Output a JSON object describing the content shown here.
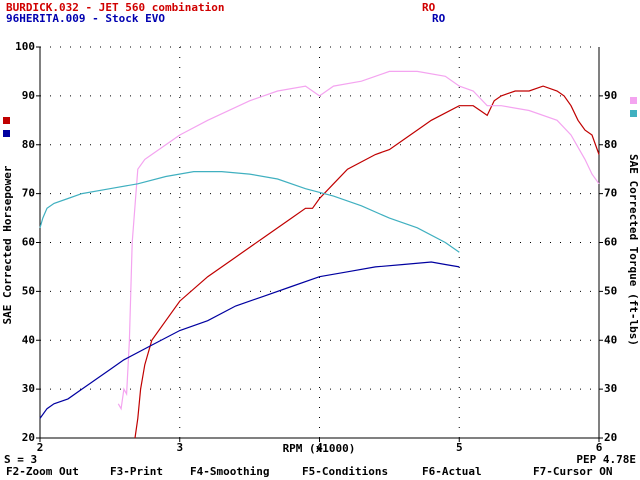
{
  "chart_data": {
    "type": "line",
    "runs": [
      {
        "name": "BURDICK.032 - JET 560 combination",
        "code": "RO",
        "color": "#d00000"
      },
      {
        "name": "96HERITA.009 - Stock EVO",
        "code": "RO",
        "color": "#0000b0"
      }
    ],
    "xlabel": "RPM (x1000)",
    "ylabel": "SAE Corrected Horsepower",
    "y2label": "SAE Corrected Torque (ft-lbs)",
    "xlim": [
      2,
      6
    ],
    "xticks": [
      2,
      3,
      4,
      5,
      6
    ],
    "ylim": [
      20,
      100
    ],
    "yticks": [
      20,
      30,
      40,
      50,
      60,
      70,
      80,
      90,
      100
    ],
    "y2lim": [
      20,
      100
    ],
    "y2ticks": [
      20,
      30,
      40,
      50,
      60,
      70,
      80,
      90
    ],
    "grid": true,
    "series": [
      {
        "color": "#c00000",
        "axis": "y",
        "x": [
          2.68,
          2.7,
          2.72,
          2.75,
          2.8,
          2.9,
          3.0,
          3.2,
          3.4,
          3.6,
          3.8,
          3.9,
          3.95,
          4.0,
          4.1,
          4.2,
          4.4,
          4.5,
          4.6,
          4.8,
          5.0,
          5.1,
          5.15,
          5.2,
          5.25,
          5.3,
          5.4,
          5.5,
          5.6,
          5.7,
          5.75,
          5.8,
          5.85,
          5.9,
          5.95,
          6.0
        ],
        "values": [
          20,
          24,
          30,
          35,
          40,
          44,
          48,
          53,
          57,
          61,
          65,
          67,
          67,
          69,
          72,
          75,
          78,
          79,
          81,
          85,
          88,
          88,
          87,
          86,
          89,
          90,
          91,
          91,
          92,
          91,
          90,
          88,
          85,
          83,
          82,
          78
        ]
      },
      {
        "color": "#f4a4f0",
        "axis": "y2",
        "x": [
          2.56,
          2.58,
          2.6,
          2.62,
          2.64,
          2.66,
          2.7,
          2.75,
          2.8,
          3.0,
          3.2,
          3.5,
          3.7,
          3.9,
          4.0,
          4.1,
          4.3,
          4.5,
          4.7,
          4.9,
          5.0,
          5.1,
          5.2,
          5.3,
          5.5,
          5.7,
          5.8,
          5.9,
          5.95,
          6.0
        ],
        "values": [
          27,
          26,
          30,
          29,
          40,
          60,
          75,
          77,
          78,
          82,
          85,
          89,
          91,
          92,
          90,
          92,
          93,
          95,
          95,
          94,
          92,
          91,
          88,
          88,
          87,
          85,
          82,
          77,
          74,
          72
        ]
      },
      {
        "color": "#0000a0",
        "axis": "y",
        "x": [
          2.0,
          2.05,
          2.1,
          2.2,
          2.3,
          2.4,
          2.5,
          2.6,
          2.8,
          3.0,
          3.2,
          3.4,
          3.6,
          3.8,
          4.0,
          4.2,
          4.4,
          4.6,
          4.8,
          4.9,
          5.0
        ],
        "values": [
          24,
          26,
          27,
          28,
          30,
          32,
          34,
          36,
          39,
          42,
          44,
          47,
          49,
          51,
          53,
          54,
          55,
          55.5,
          56,
          55.5,
          55
        ]
      },
      {
        "color": "#40b0c0",
        "axis": "y2",
        "x": [
          2.0,
          2.02,
          2.05,
          2.1,
          2.2,
          2.3,
          2.5,
          2.7,
          2.9,
          3.1,
          3.3,
          3.5,
          3.7,
          3.9,
          4.1,
          4.3,
          4.5,
          4.7,
          4.9,
          5.0
        ],
        "values": [
          63,
          65,
          67,
          68,
          69,
          70,
          71,
          72,
          73.5,
          74.5,
          74.5,
          74,
          73,
          71,
          69.5,
          67.5,
          65,
          63,
          60,
          58
        ]
      }
    ],
    "status_left": "S = 3",
    "status_right": "PEP 4.78E",
    "menu": [
      "F2-Zoom Out",
      "F3-Print",
      "F4-Smoothing",
      "F5-Conditions",
      "F6-Actual",
      "F7-Cursor ON"
    ]
  }
}
